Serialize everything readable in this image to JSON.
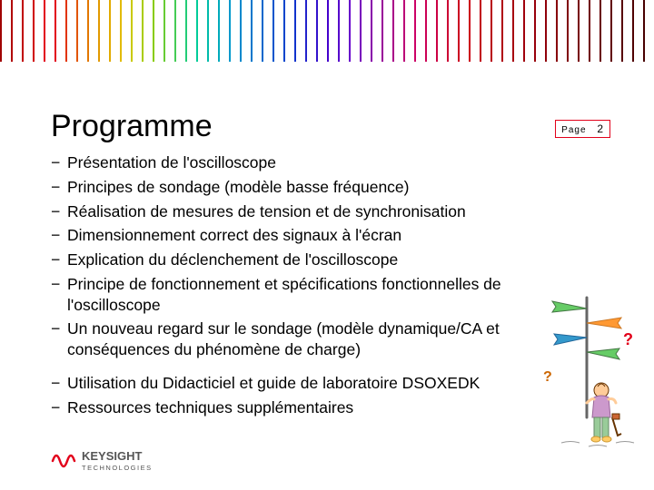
{
  "colors": {
    "accent": "#e2001a",
    "text": "#000000",
    "bg": "#ffffff",
    "barcode_colors": [
      "#a00000",
      "#b00000",
      "#c00000",
      "#d00000",
      "#e2001a",
      "#e2001a",
      "#e23300",
      "#e25500",
      "#e27700",
      "#e29900",
      "#e2aa00",
      "#e2bb00",
      "#c9c900",
      "#aacc00",
      "#88cc00",
      "#66cc33",
      "#44cc55",
      "#22cc77",
      "#00cc99",
      "#00bbaa",
      "#00aabb",
      "#0099cc",
      "#0088cc",
      "#0077cc",
      "#0066cc",
      "#0055cc",
      "#0044cc",
      "#1133cc",
      "#2222cc",
      "#3311cc",
      "#4400cc",
      "#5500cc",
      "#6600cc",
      "#7700bb",
      "#8800aa",
      "#990099",
      "#aa0088",
      "#bb0077",
      "#cc0066",
      "#cc0055",
      "#cc0044",
      "#cc0033",
      "#cc0022",
      "#cc0011",
      "#c00010",
      "#b8000f",
      "#b0000e",
      "#a8000d",
      "#a0000c",
      "#98000b",
      "#90000a",
      "#880009",
      "#800008",
      "#780007",
      "#700006",
      "#680005",
      "#600004",
      "#580003",
      "#500002",
      "#480001"
    ]
  },
  "header": {
    "title": "Programme",
    "page_label": "Page",
    "page_number": "2"
  },
  "items": [
    [
      "Présentation de l'oscilloscope",
      "Principes de sondage (modèle basse fréquence)",
      "Réalisation de mesures de tension et de synchronisation",
      "Dimensionnement correct des signaux à l'écran",
      "Explication du déclenchement de l'oscilloscope",
      "Principe de fonctionnement et spécifications fonctionnelles de l'oscilloscope",
      "Un nouveau regard sur le sondage (modèle dynamique/CA et conséquences du phénomène de charge)"
    ],
    [
      "Utilisation du Didacticiel et guide de laboratoire DSOXEDK",
      "Ressources techniques supplémentaires"
    ]
  ],
  "footer": {
    "brand_bold": "KEYSIGHT",
    "brand_sub": "TECHNOLOGIES"
  },
  "illustration": {
    "signpost_color": "#666666",
    "arrow_colors": [
      "#66cc66",
      "#ff9933",
      "#3399cc"
    ],
    "person_body": "#cc99cc",
    "person_pants": "#99cc99",
    "person_head": "#ffcc99",
    "qmark_color": "#e2001a"
  },
  "typography": {
    "title_fontsize": 34,
    "body_fontsize": 17.5,
    "page_label_fontsize": 10
  }
}
